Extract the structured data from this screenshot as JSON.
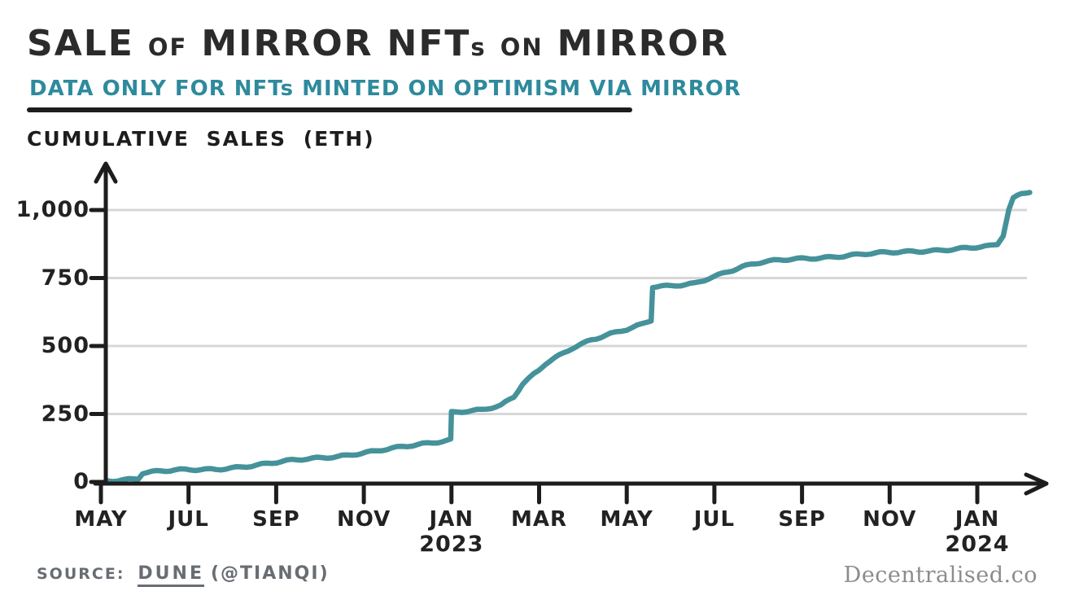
{
  "header": {
    "title_parts": [
      {
        "text": "SALE",
        "small": false,
        "tight": false
      },
      {
        "text": "OF",
        "small": true,
        "tight": false
      },
      {
        "text": "MIRROR",
        "small": false,
        "tight": false
      },
      {
        "text": "NFT",
        "small": false,
        "tight": false
      },
      {
        "text": "s",
        "small": true,
        "tight": true
      },
      {
        "text": "ON",
        "small": true,
        "tight": false
      },
      {
        "text": "MIRROR",
        "small": false,
        "tight": false
      }
    ],
    "subtitle": "DATA ONLY FOR NFTs MINTED ON OPTIMISM VIA MIRROR"
  },
  "colors": {
    "title": "#2b2b2b",
    "accent_teal": "#2e8a9d",
    "line_teal": "#45929a",
    "axis": "#1d1d1d",
    "grid": "#d7d7d7",
    "muted": "#686d73",
    "watermark": "#8c8c8c"
  },
  "chart": {
    "y_axis_title": "CUMULATIVE SALES (ETH)"
  },
  "chart_data": {
    "type": "line",
    "title": "SALE OF MIRROR NFTs ON MIRROR",
    "subtitle": "DATA ONLY FOR NFTs MINTED ON OPTIMISM VIA MIRROR",
    "ylabel": "CUMULATIVE SALES (ETH)",
    "xlabel": "",
    "ylim": [
      0,
      1100
    ],
    "grid": true,
    "legend": "none",
    "y_ticks": [
      {
        "value": 0,
        "label": "0"
      },
      {
        "value": 250,
        "label": "250"
      },
      {
        "value": 500,
        "label": "500"
      },
      {
        "value": 750,
        "label": "750"
      },
      {
        "value": 1000,
        "label": "1,000"
      }
    ],
    "x_ticks": [
      {
        "date": "2022-05-01",
        "label": "MAY",
        "year_label": ""
      },
      {
        "date": "2022-07-01",
        "label": "JUL",
        "year_label": ""
      },
      {
        "date": "2022-09-01",
        "label": "SEP",
        "year_label": ""
      },
      {
        "date": "2022-11-01",
        "label": "NOV",
        "year_label": ""
      },
      {
        "date": "2023-01-01",
        "label": "JAN",
        "year_label": "2023"
      },
      {
        "date": "2023-03-01",
        "label": "MAR",
        "year_label": ""
      },
      {
        "date": "2023-05-01",
        "label": "MAY",
        "year_label": ""
      },
      {
        "date": "2023-07-01",
        "label": "JUL",
        "year_label": ""
      },
      {
        "date": "2023-09-01",
        "label": "SEP",
        "year_label": ""
      },
      {
        "date": "2023-11-01",
        "label": "NOV",
        "year_label": ""
      },
      {
        "date": "2024-01-01",
        "label": "JAN",
        "year_label": "2024"
      }
    ],
    "series": [
      {
        "name": "Cumulative sales (ETH)",
        "points": [
          [
            "2022-05-05",
            6
          ],
          [
            "2022-05-20",
            10
          ],
          [
            "2022-05-27",
            13
          ],
          [
            "2022-05-30",
            33
          ],
          [
            "2022-06-22",
            42
          ],
          [
            "2022-07-20",
            48
          ],
          [
            "2022-08-18",
            62
          ],
          [
            "2022-09-12",
            78
          ],
          [
            "2022-10-13",
            95
          ],
          [
            "2022-11-10",
            115
          ],
          [
            "2022-12-08",
            135
          ],
          [
            "2022-12-28",
            152
          ],
          [
            "2022-12-31",
            156
          ],
          [
            "2023-01-01",
            257
          ],
          [
            "2023-01-12",
            263
          ],
          [
            "2023-01-22",
            267
          ],
          [
            "2023-02-05",
            281
          ],
          [
            "2023-02-14",
            312
          ],
          [
            "2023-02-20",
            358
          ],
          [
            "2023-03-01",
            410
          ],
          [
            "2023-03-06",
            436
          ],
          [
            "2023-03-15",
            465
          ],
          [
            "2023-03-24",
            494
          ],
          [
            "2023-04-07",
            525
          ],
          [
            "2023-04-20",
            545
          ],
          [
            "2023-05-01",
            560
          ],
          [
            "2023-05-12",
            578
          ],
          [
            "2023-05-18",
            593
          ],
          [
            "2023-05-19",
            716
          ],
          [
            "2023-06-01",
            720
          ],
          [
            "2023-06-18",
            732
          ],
          [
            "2023-06-28",
            752
          ],
          [
            "2023-07-20",
            790
          ],
          [
            "2023-08-05",
            808
          ],
          [
            "2023-08-25",
            820
          ],
          [
            "2023-09-20",
            828
          ],
          [
            "2023-10-15",
            838
          ],
          [
            "2023-11-10",
            845
          ],
          [
            "2023-12-01",
            852
          ],
          [
            "2023-12-20",
            860
          ],
          [
            "2024-01-10",
            866
          ],
          [
            "2024-01-15",
            872
          ],
          [
            "2024-01-19",
            905
          ],
          [
            "2024-01-23",
            1000
          ],
          [
            "2024-01-26",
            1040
          ],
          [
            "2024-02-01",
            1058
          ],
          [
            "2024-02-07",
            1068
          ]
        ]
      }
    ]
  },
  "footer": {
    "source_prefix": "SOURCE:",
    "source_dune": "DUNE",
    "source_handle": "(@TIANQI)",
    "watermark": "Decentralised.co"
  }
}
